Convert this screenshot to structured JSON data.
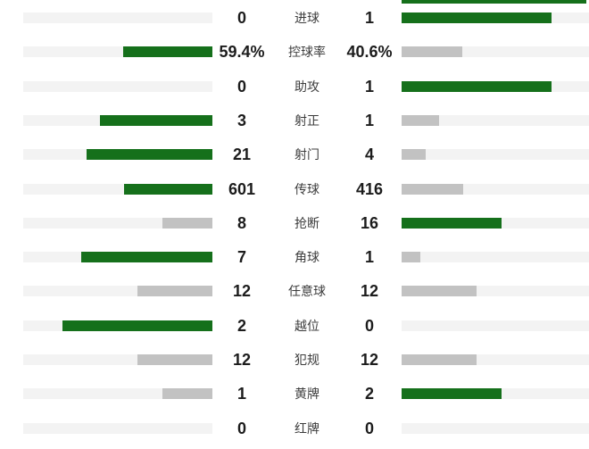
{
  "chart_data": {
    "type": "bar",
    "subtype": "paired-horizontal-comparison",
    "title": "",
    "categories": [
      "进球",
      "控球率",
      "助攻",
      "射正",
      "射门",
      "传球",
      "抢断",
      "角球",
      "任意球",
      "越位",
      "犯规",
      "黄牌",
      "红牌"
    ],
    "series": [
      {
        "name": "home",
        "values": [
          0,
          59.4,
          0,
          3,
          21,
          601,
          8,
          7,
          12,
          2,
          12,
          1,
          0
        ]
      },
      {
        "name": "away",
        "values": [
          1,
          40.6,
          1,
          1,
          4,
          416,
          16,
          1,
          12,
          0,
          12,
          2,
          0
        ]
      }
    ],
    "value_display": {
      "home": [
        "0",
        "59.4%",
        "0",
        "3",
        "21",
        "601",
        "8",
        "7",
        "12",
        "2",
        "12",
        "1",
        "0"
      ],
      "away": [
        "1",
        "40.6%",
        "1",
        "1",
        "4",
        "416",
        "16",
        "1",
        "12",
        "0",
        "12",
        "2",
        "0"
      ]
    },
    "legend": "none",
    "grid": false,
    "bar_rule": "bar length = value / (home+away) of max bar; winner colored green, loser/tie gray"
  },
  "rows": [
    {
      "label": "进球",
      "home": "0",
      "away": "1"
    },
    {
      "label": "控球率",
      "home": "59.4%",
      "away": "40.6%"
    },
    {
      "label": "助攻",
      "home": "0",
      "away": "1"
    },
    {
      "label": "射正",
      "home": "3",
      "away": "1"
    },
    {
      "label": "射门",
      "home": "21",
      "away": "4"
    },
    {
      "label": "传球",
      "home": "601",
      "away": "416"
    },
    {
      "label": "抢断",
      "home": "8",
      "away": "16"
    },
    {
      "label": "角球",
      "home": "7",
      "away": "1"
    },
    {
      "label": "任意球",
      "home": "12",
      "away": "12"
    },
    {
      "label": "越位",
      "home": "2",
      "away": "0"
    },
    {
      "label": "犯规",
      "home": "12",
      "away": "12"
    },
    {
      "label": "黄牌",
      "home": "1",
      "away": "2"
    },
    {
      "label": "红牌",
      "home": "0",
      "away": "0"
    }
  ],
  "colors": {
    "win_bar": "#15701b",
    "lose_bar": "#c2c2c2",
    "track": "#f3f3f3",
    "value_text": "#1c1c1c",
    "label_text": "#3c3c3c"
  }
}
